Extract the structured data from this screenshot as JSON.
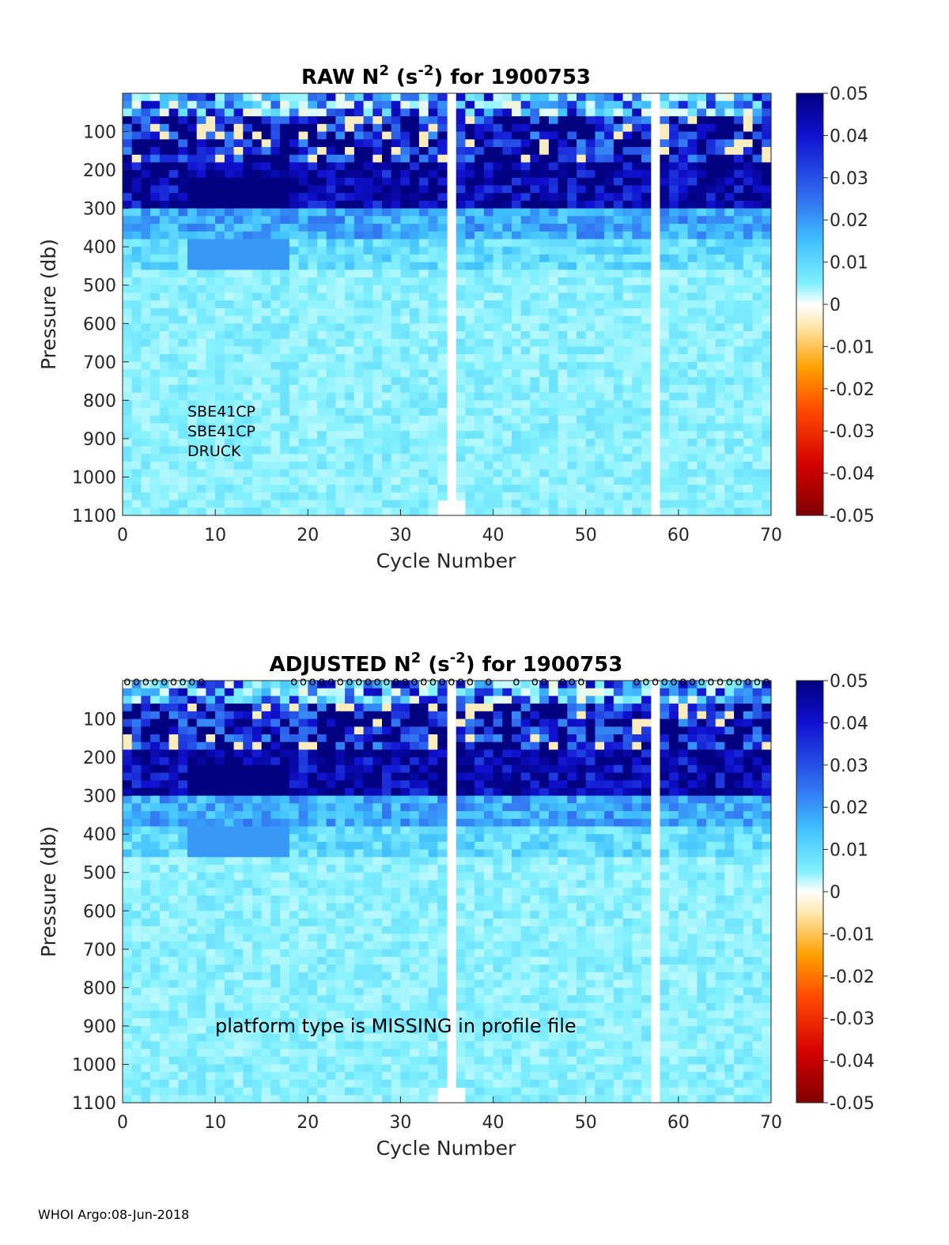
{
  "footer": "WHOI Argo:08-Jun-2018",
  "colors": {
    "colormap": [
      "#800000",
      "#d40000",
      "#ff4a00",
      "#ffa000",
      "#ffe8b0",
      "#e0ffff",
      "#80f0ff",
      "#40c0ff",
      "#3070f0",
      "#1010d0",
      "#000080"
    ],
    "axis": "#262626"
  },
  "chart_data": [
    {
      "type": "heatmap",
      "title_main": "RAW N",
      "title_sup1": "2",
      "title_mid": " (s",
      "title_sup2": "-2",
      "title_end": ") for 1900753",
      "xlabel": "Cycle Number",
      "ylabel": "Pressure (db)",
      "xlim": [
        0,
        70
      ],
      "ylim": [
        0,
        1100
      ],
      "xticks": [
        "0",
        "10",
        "20",
        "30",
        "40",
        "50",
        "60",
        "70"
      ],
      "yticks": [
        "100",
        "200",
        "300",
        "400",
        "500",
        "600",
        "700",
        "800",
        "900",
        "1000",
        "1100"
      ],
      "colorbar_ticks": [
        "0.05",
        "0.04",
        "0.03",
        "0.02",
        "0.01",
        "0",
        "-0.01",
        "-0.02",
        "-0.03",
        "-0.04",
        "-0.05"
      ],
      "clim": [
        -0.05,
        0.05
      ],
      "missing_cycles": [
        36,
        58
      ],
      "annotation_lines": [
        "SBE41CP",
        "SBE41CP",
        "DRUCK"
      ],
      "qc_marker": "",
      "qc_marker_cycles": []
    },
    {
      "type": "heatmap",
      "title_main": "ADJUSTED N",
      "title_sup1": "2",
      "title_mid": " (s",
      "title_sup2": "-2",
      "title_end": ") for 1900753",
      "xlabel": "Cycle Number",
      "ylabel": "Pressure (db)",
      "xlim": [
        0,
        70
      ],
      "ylim": [
        0,
        1100
      ],
      "xticks": [
        "0",
        "10",
        "20",
        "30",
        "40",
        "50",
        "60",
        "70"
      ],
      "yticks": [
        "100",
        "200",
        "300",
        "400",
        "500",
        "600",
        "700",
        "800",
        "900",
        "1000",
        "1100"
      ],
      "colorbar_ticks": [
        "0.05",
        "0.04",
        "0.03",
        "0.02",
        "0.01",
        "0",
        "-0.01",
        "-0.02",
        "-0.03",
        "-0.04",
        "-0.05"
      ],
      "clim": [
        -0.05,
        0.05
      ],
      "missing_cycles": [
        36,
        58
      ],
      "annotation_lines": [
        "platform type is MISSING in profile file"
      ],
      "qc_marker": "o",
      "qc_marker_cycles": [
        1,
        2,
        3,
        4,
        5,
        6,
        7,
        8,
        9,
        19,
        20,
        21,
        22,
        23,
        24,
        25,
        26,
        27,
        28,
        29,
        30,
        31,
        32,
        33,
        34,
        35,
        36,
        37,
        38,
        40,
        43,
        45,
        46,
        48,
        49,
        50,
        56,
        57,
        58,
        59,
        60,
        61,
        62,
        63,
        64,
        65,
        66,
        67,
        68,
        69,
        70
      ]
    }
  ]
}
